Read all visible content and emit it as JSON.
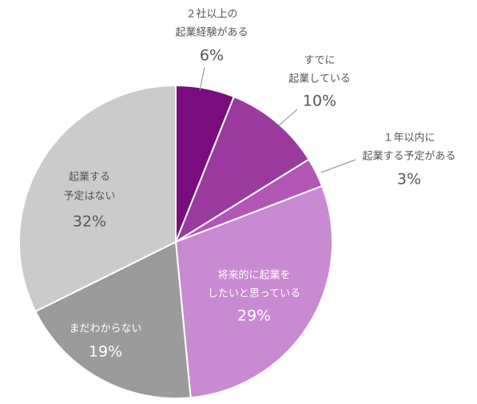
{
  "chart_data": {
    "type": "pie",
    "categories": [
      [
        "２社以上の",
        "起業経験がある"
      ],
      [
        "すでに",
        "起業している"
      ],
      [
        "１年以内に",
        "起業する予定がある"
      ],
      [
        "将来的に起業を",
        "したいと思っている"
      ],
      [
        "まだわからない"
      ],
      [
        "起業する",
        "予定はない"
      ]
    ],
    "values": [
      6,
      10,
      3,
      29,
      19,
      32
    ],
    "value_labels": [
      "6%",
      "10%",
      "3%",
      "29%",
      "19%",
      "32%"
    ],
    "colors": [
      "#7a0c7d",
      "#9a3a9e",
      "#b156b5",
      "#c88ad0",
      "#9b9b9b",
      "#cbcbcb"
    ]
  }
}
